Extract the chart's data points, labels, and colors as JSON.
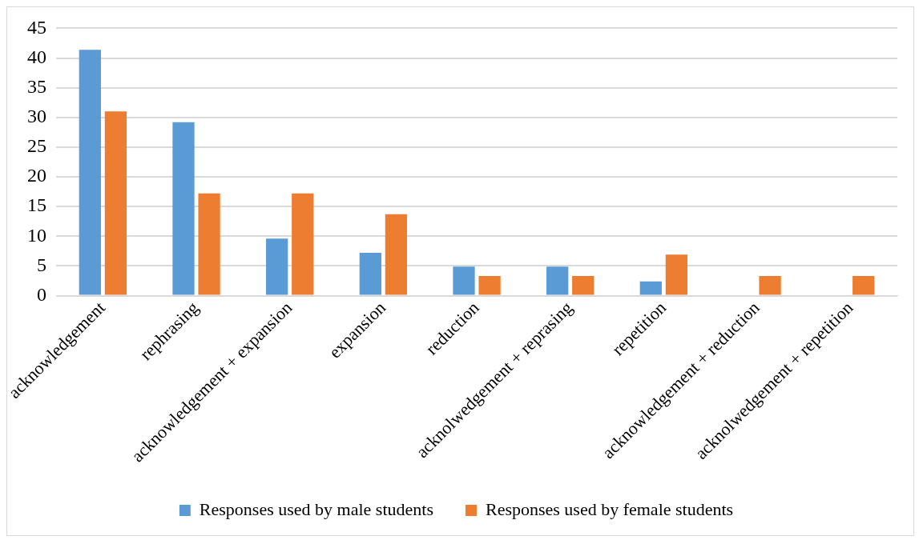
{
  "chart_data": {
    "type": "bar",
    "categories": [
      "acknowledgement",
      "rephrasing",
      "acknowledgement + expansion",
      "expansion",
      "reduction",
      "acknolwedgement + reprasing",
      "repetition",
      "acknowledgement + reduction",
      "acknolwedgement + repetition"
    ],
    "series": [
      {
        "name": "Responses used by male students",
        "color": "#5b9bd5",
        "values": [
          41.4,
          29.2,
          9.6,
          7.2,
          4.9,
          4.9,
          2.4,
          0,
          0
        ]
      },
      {
        "name": "Responses used by female students",
        "color": "#ed7d31",
        "values": [
          31.0,
          17.2,
          17.2,
          13.7,
          3.3,
          3.3,
          6.9,
          3.3,
          3.3
        ]
      }
    ],
    "ylim": [
      0,
      45
    ],
    "yticks": [
      0,
      5,
      10,
      15,
      20,
      25,
      30,
      35,
      40,
      45
    ],
    "grid": "y",
    "legend": "bottom"
  }
}
